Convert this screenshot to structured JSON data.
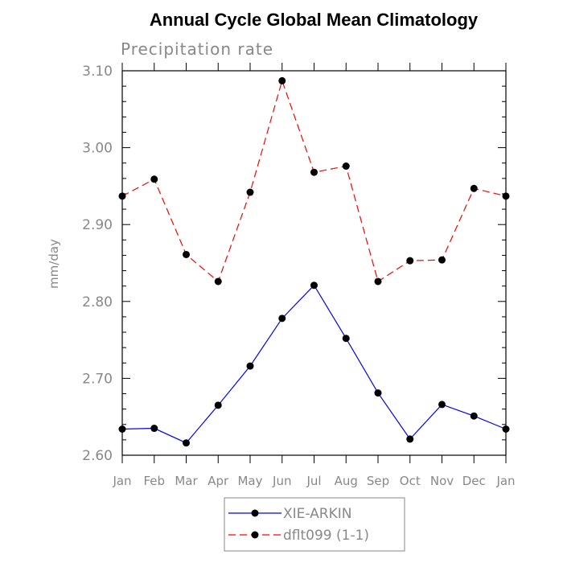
{
  "chart_data": {
    "type": "line",
    "title": "Annual Cycle Global Mean Climatology",
    "subtitle": "Precipitation rate",
    "xlabel": "",
    "ylabel": "mm/day",
    "categories": [
      "Jan",
      "Feb",
      "Mar",
      "Apr",
      "May",
      "Jun",
      "Jul",
      "Aug",
      "Sep",
      "Oct",
      "Nov",
      "Dec",
      "Jan"
    ],
    "ylim": [
      2.6,
      3.1
    ],
    "yticks": [
      "2.60",
      "2.70",
      "2.80",
      "2.90",
      "3.00",
      "3.10"
    ],
    "grid": false,
    "legend_position": "bottom-center",
    "series": [
      {
        "name": "XIE-ARKIN",
        "color": "#0000ff",
        "line_style": "solid",
        "marker": "filled-circle",
        "values": [
          2.634,
          2.635,
          2.616,
          2.665,
          2.716,
          2.778,
          2.821,
          2.752,
          2.681,
          2.621,
          2.666,
          2.651,
          2.634
        ]
      },
      {
        "name": "dflt099 (1-1)",
        "color": "#ff0000",
        "line_style": "dashed",
        "marker": "filled-circle",
        "values": [
          2.937,
          2.959,
          2.861,
          2.826,
          2.942,
          3.087,
          2.968,
          2.976,
          2.826,
          2.853,
          2.854,
          2.947,
          2.937
        ]
      }
    ]
  }
}
